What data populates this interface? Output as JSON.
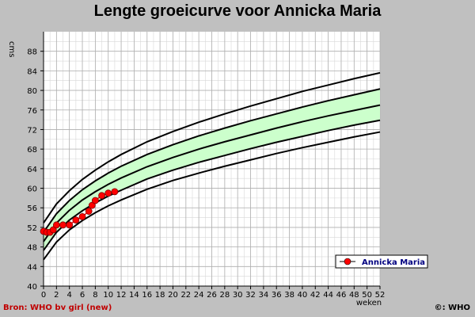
{
  "chart_data": {
    "type": "line",
    "title": "Lengte groeicurve voor Annicka Maria",
    "ylabel": "cms",
    "xlabel": "weken",
    "xlim": [
      0,
      52
    ],
    "ylim": [
      40,
      92
    ],
    "x_ticks": [
      0,
      2,
      4,
      6,
      8,
      10,
      12,
      14,
      16,
      18,
      20,
      22,
      24,
      26,
      28,
      30,
      32,
      34,
      36,
      38,
      40,
      42,
      44,
      46,
      48,
      50,
      52
    ],
    "y_ticks": [
      40,
      44,
      48,
      52,
      56,
      60,
      64,
      68,
      72,
      76,
      80,
      84,
      88
    ],
    "grid": true,
    "reference_x": [
      0,
      2,
      4,
      6,
      8,
      10,
      12,
      16,
      20,
      24,
      28,
      32,
      36,
      40,
      44,
      48,
      52
    ],
    "reference_curves": [
      {
        "values": [
          45.4,
          49.0,
          51.5,
          53.4,
          55.0,
          56.4,
          57.6,
          59.8,
          61.6,
          63.1,
          64.5,
          65.8,
          67.1,
          68.3,
          69.4,
          70.5,
          71.5
        ]
      },
      {
        "values": [
          47.3,
          51.0,
          53.5,
          55.4,
          57.0,
          58.4,
          59.6,
          61.9,
          63.7,
          65.3,
          66.7,
          68.1,
          69.4,
          70.6,
          71.8,
          72.9,
          73.9
        ]
      },
      {
        "values": [
          49.1,
          52.9,
          55.5,
          57.6,
          59.3,
          60.8,
          62.1,
          64.4,
          66.3,
          68.0,
          69.5,
          70.9,
          72.3,
          73.6,
          74.8,
          75.9,
          77.0
        ]
      },
      {
        "values": [
          51.0,
          54.8,
          57.5,
          59.7,
          61.5,
          63.1,
          64.5,
          66.9,
          68.9,
          70.7,
          72.3,
          73.8,
          75.2,
          76.6,
          77.9,
          79.1,
          80.3
        ]
      },
      {
        "values": [
          52.9,
          56.8,
          59.5,
          61.8,
          63.7,
          65.4,
          66.9,
          69.5,
          71.6,
          73.5,
          75.2,
          76.8,
          78.3,
          79.8,
          81.1,
          82.4,
          83.6
        ]
      }
    ],
    "band_color": "#ccffcc",
    "series": [
      {
        "name": "Annicka Maria",
        "color": "#ff0000",
        "x": [
          0,
          0.5,
          1,
          1.5,
          2,
          3,
          4,
          5,
          6,
          7,
          7.5,
          8,
          9,
          10,
          11
        ],
        "y": [
          51.2,
          51.0,
          51.0,
          51.5,
          52.5,
          52.5,
          52.5,
          53.5,
          54.2,
          55.3,
          56.5,
          57.5,
          58.5,
          59.0,
          59.3
        ]
      }
    ],
    "legend_position": "bottom-right"
  },
  "footer": {
    "source": "Bron: WHO bv girl (new)",
    "copyright": "©: WHO"
  }
}
